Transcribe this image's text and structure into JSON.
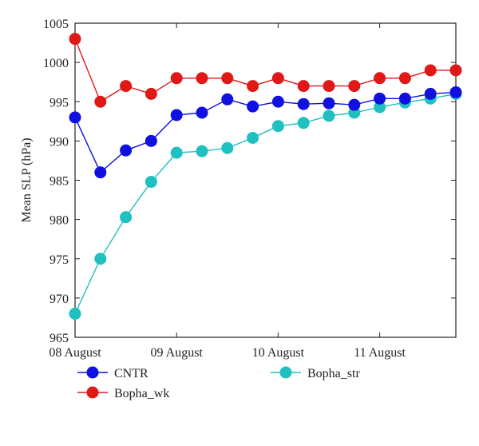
{
  "chart_data": {
    "type": "line",
    "xlabel": "",
    "ylabel": "Mean SLP (hPa)",
    "ylim": [
      965,
      1005
    ],
    "y_ticks": [
      965,
      970,
      975,
      980,
      985,
      990,
      995,
      1000,
      1005
    ],
    "xlim": [
      0,
      3.75
    ],
    "x_ticks": [
      {
        "value": 0,
        "label": "08 August"
      },
      {
        "value": 1,
        "label": "09 August"
      },
      {
        "value": 2,
        "label": "10 August"
      },
      {
        "value": 3,
        "label": "11 August"
      }
    ],
    "x": [
      0,
      0.25,
      0.5,
      0.75,
      1,
      1.25,
      1.5,
      1.75,
      2,
      2.25,
      2.5,
      2.75,
      3,
      3.25,
      3.5,
      3.75
    ],
    "grid": false,
    "legend_placement": "bottom",
    "series": [
      {
        "name": "CNTR",
        "color": "#1010e0",
        "values": [
          993,
          986,
          988.8,
          990,
          993.3,
          993.6,
          995.3,
          994.4,
          995,
          994.7,
          994.8,
          994.6,
          995.4,
          995.4,
          996,
          996.2
        ]
      },
      {
        "name": "Bopha_wk",
        "color": "#e01818",
        "values": [
          1003,
          995,
          997,
          996,
          998,
          998,
          998,
          997,
          998,
          997,
          997,
          997,
          998,
          998,
          999,
          999
        ]
      },
      {
        "name": "Bopha_str",
        "color": "#20c0c0",
        "values": [
          968,
          975,
          980.3,
          984.8,
          988.5,
          988.7,
          989.1,
          990.4,
          991.9,
          992.3,
          993.2,
          993.6,
          994.3,
          994.9,
          995.4,
          996
        ]
      }
    ]
  }
}
